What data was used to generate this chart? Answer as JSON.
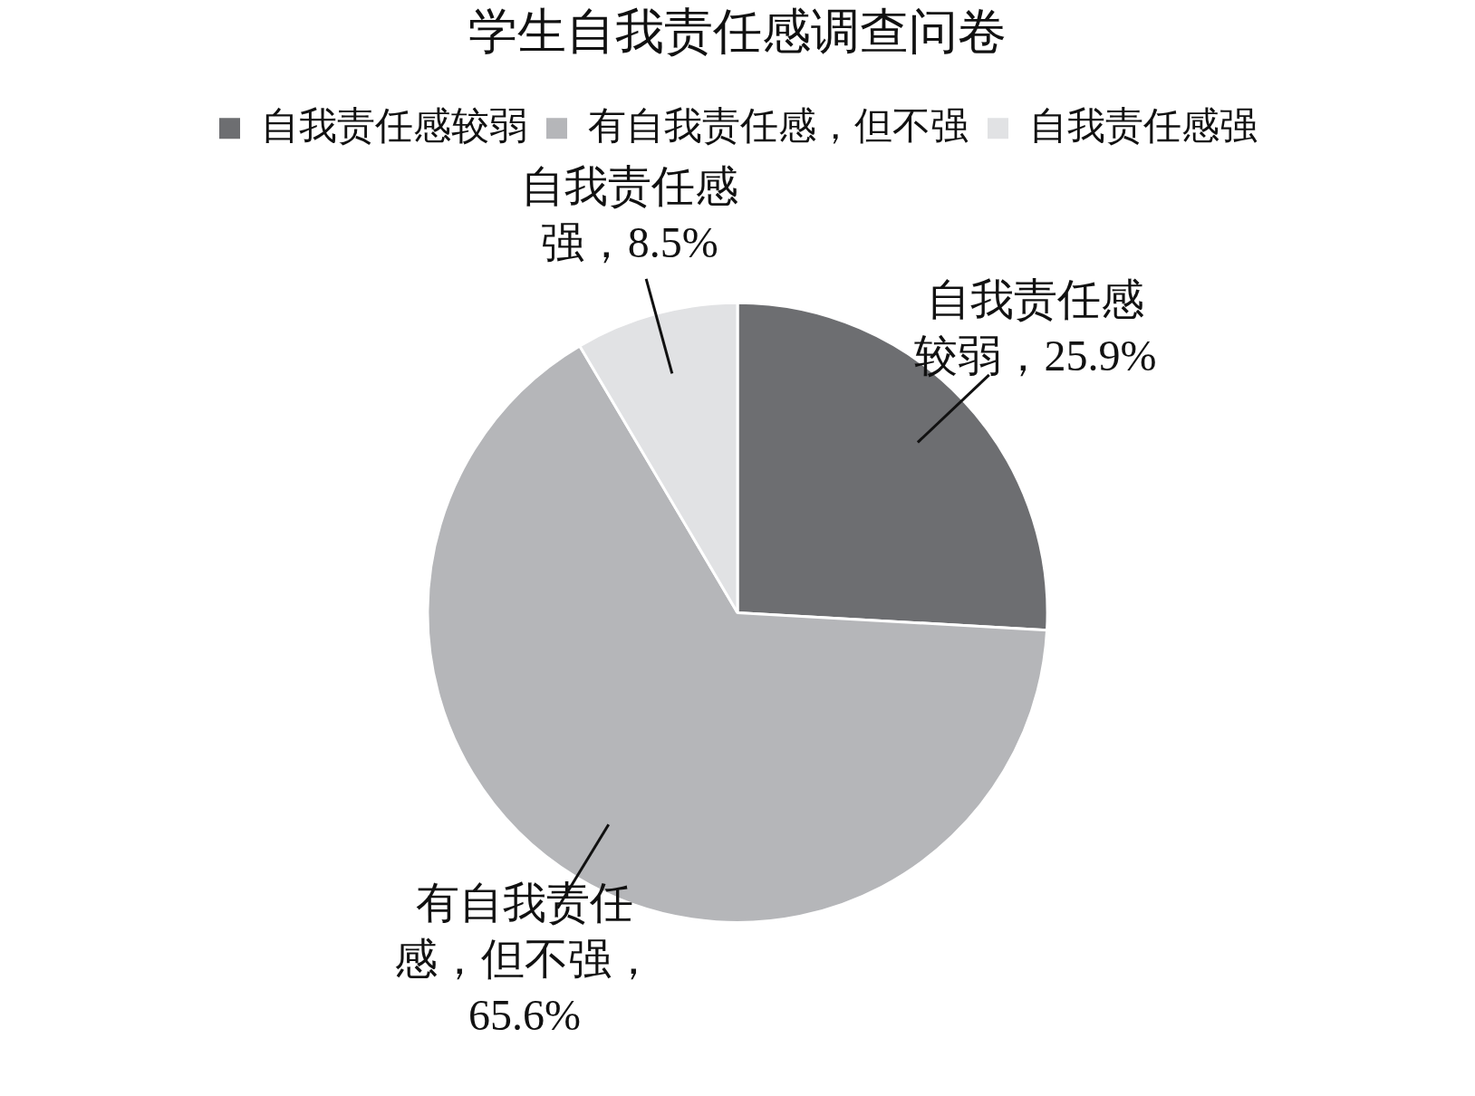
{
  "chart_data": {
    "type": "pie",
    "title": "学生自我责任感调查问卷",
    "categories": [
      "自我责任感较弱",
      "有自我责任感，但不强",
      "自我责任感强"
    ],
    "values": [
      25.9,
      65.6,
      8.5
    ],
    "colors": [
      "#6d6e71",
      "#b5b6b9",
      "#e1e2e4"
    ],
    "value_labels": [
      "自我责任感较弱，25.9%",
      "有自我责任感，但不强，65.6%",
      "自我责任感强，8.5%"
    ],
    "legend": "top"
  }
}
